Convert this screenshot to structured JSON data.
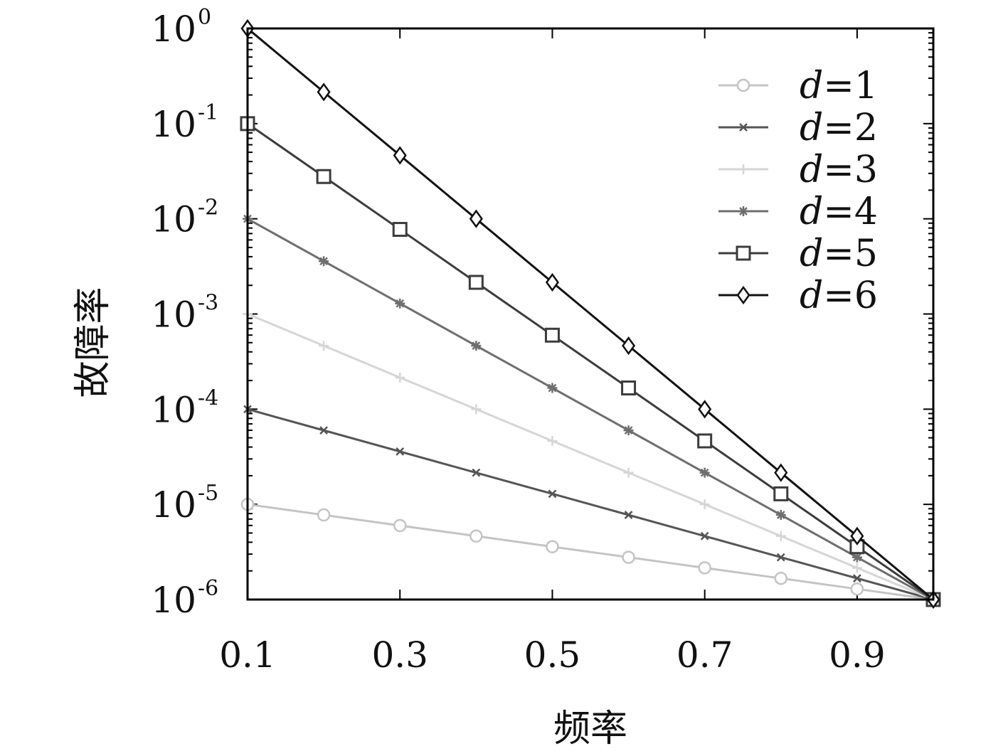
{
  "chart_data": {
    "type": "line",
    "xlabel": "频率",
    "ylabel": "故障率",
    "yscale": "log",
    "xlim": [
      0.1,
      1.0
    ],
    "ylim": [
      1e-06,
      1
    ],
    "x_ticks": [
      0.1,
      0.3,
      0.5,
      0.7,
      0.9
    ],
    "x_tick_labels": [
      "0.1",
      "0.3",
      "0.5",
      "0.7",
      "0.9"
    ],
    "y_tick_labels": [
      {
        "base": "10",
        "exp": "0",
        "value": 1
      },
      {
        "base": "10",
        "exp": "-1",
        "value": 0.1
      },
      {
        "base": "10",
        "exp": "-2",
        "value": 0.01
      },
      {
        "base": "10",
        "exp": "-3",
        "value": 0.001
      },
      {
        "base": "10",
        "exp": "-4",
        "value": 0.0001
      },
      {
        "base": "10",
        "exp": "-5",
        "value": 1e-05
      },
      {
        "base": "10",
        "exp": "-6",
        "value": 1e-06
      }
    ],
    "grid": false,
    "legend_position": "top-right",
    "x": [
      0.1,
      0.2,
      0.3,
      0.4,
      0.5,
      0.6,
      0.7,
      0.8,
      0.9,
      1.0
    ],
    "series": [
      {
        "name": "d=1",
        "var": "d",
        "num": "1",
        "color": "#c4c4c4",
        "marker": "circle",
        "values": [
          1e-05,
          7.74e-06,
          5.99e-06,
          4.64e-06,
          3.59e-06,
          2.78e-06,
          2.15e-06,
          1.67e-06,
          1.29e-06,
          1e-06
        ]
      },
      {
        "name": "d=2",
        "var": "d",
        "num": "2",
        "color": "#555555",
        "marker": "x",
        "values": [
          0.0001,
          5.99e-05,
          3.59e-05,
          2.15e-05,
          1.29e-05,
          7.74e-06,
          4.64e-06,
          2.78e-06,
          1.67e-06,
          1e-06
        ]
      },
      {
        "name": "d=3",
        "var": "d",
        "num": "3",
        "color": "#d6d6d6",
        "marker": "plus",
        "values": [
          0.001,
          0.000464,
          0.000215,
          0.0001,
          4.64e-05,
          2.15e-05,
          1e-05,
          4.64e-06,
          2.15e-06,
          1e-06
        ]
      },
      {
        "name": "d=4",
        "var": "d",
        "num": "4",
        "color": "#6e6e6e",
        "marker": "star",
        "values": [
          0.01,
          0.00359,
          0.00129,
          0.000464,
          0.000167,
          5.99e-05,
          2.15e-05,
          7.74e-06,
          2.78e-06,
          1e-06
        ]
      },
      {
        "name": "d=5",
        "var": "d",
        "num": "5",
        "color": "#3c3c3c",
        "marker": "square",
        "values": [
          0.1,
          0.0278,
          0.00774,
          0.00215,
          0.000599,
          0.000167,
          4.64e-05,
          1.29e-05,
          3.59e-06,
          1e-06
        ]
      },
      {
        "name": "d=6",
        "var": "d",
        "num": "6",
        "color": "#111111",
        "marker": "diamond",
        "values": [
          1,
          0.215,
          0.0464,
          0.01,
          0.00215,
          0.000464,
          0.0001,
          2.15e-05,
          4.64e-06,
          1e-06
        ]
      }
    ]
  }
}
